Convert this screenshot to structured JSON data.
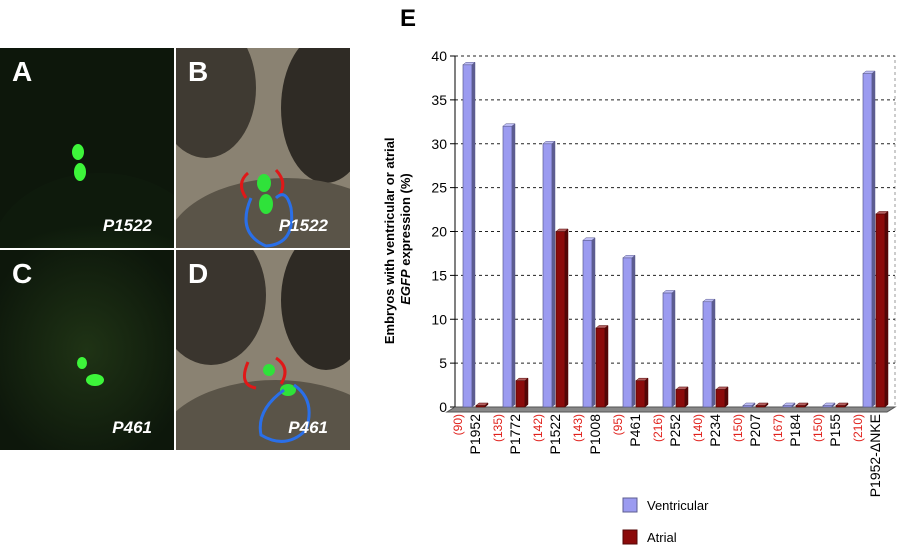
{
  "panels": [
    {
      "label": "A",
      "gene": "P1522"
    },
    {
      "label": "B",
      "gene": "P1522"
    },
    {
      "label": "C",
      "gene": "P461"
    },
    {
      "label": "D",
      "gene": "P461"
    }
  ],
  "chart_data": {
    "type": "bar",
    "panel_label": "E",
    "ylabel_line1": "Embryos with ventricular or atrial",
    "ylabel_gene": "EGFP",
    "ylabel_tail": " expression (%)",
    "ylim": [
      0,
      40
    ],
    "yticks": [
      "0",
      "5",
      "10",
      "15",
      "20",
      "25",
      "30",
      "35",
      "40"
    ],
    "categories": [
      "P1952",
      "P1772",
      "P1522",
      "P1008",
      "P461",
      "P252",
      "P234",
      "P207",
      "P184",
      "P155",
      "P1952-ΔNKE"
    ],
    "n_labels": [
      "(90)",
      "(135)",
      "(142)",
      "(143)",
      "(95)",
      "(216)",
      "(140)",
      "(150)",
      "(167)",
      "(150)",
      "(210)"
    ],
    "series": [
      {
        "name": "Ventricular",
        "values": [
          39,
          32,
          30,
          19,
          17,
          13,
          12,
          0,
          0,
          0,
          38
        ],
        "color": "#9b9bf0"
      },
      {
        "name": "Atrial",
        "values": [
          0,
          3,
          20,
          9,
          3,
          2,
          2,
          0,
          0,
          0,
          22
        ],
        "color": "#8b0a0a"
      }
    ],
    "grid": true,
    "legend_position": "bottom"
  }
}
